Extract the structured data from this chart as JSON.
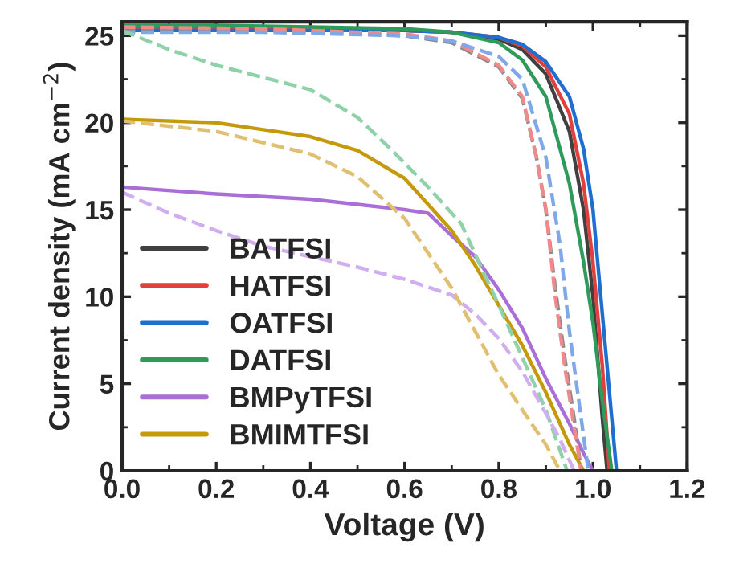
{
  "chart_data": {
    "type": "line",
    "xlabel": "Voltage (V)",
    "ylabel": "Current density (mA cm$^{−2}$)",
    "xlim": [
      0,
      1.2
    ],
    "ylim": [
      0,
      25.8
    ],
    "xticks": [
      {
        "value": 0,
        "label": "0.0"
      },
      0.2,
      0.4,
      0.6,
      0.8,
      {
        "value": 1,
        "label": "1.0"
      },
      1.2
    ],
    "yticks": [
      0,
      5,
      10,
      15,
      20,
      25
    ],
    "grid": false,
    "legend": "bottom left",
    "marker": "none",
    "line_style": "solid",
    "series": [
      {
        "name": "BATFSI",
        "color": "#404040",
        "x": [
          0,
          0.2,
          0.4,
          0.6,
          0.7,
          0.8,
          0.85,
          0.9,
          0.95,
          0.98,
          1.0,
          1.02,
          1.03
        ],
        "values": [
          25.5,
          25.5,
          25.4,
          25.3,
          25.2,
          24.8,
          24.2,
          22.8,
          19.5,
          15,
          10,
          3,
          0
        ]
      },
      {
        "name": "HATFSI",
        "color": "#e0413f",
        "x": [
          0,
          0.2,
          0.4,
          0.6,
          0.7,
          0.8,
          0.85,
          0.9,
          0.95,
          0.98,
          1.0,
          1.02,
          1.035
        ],
        "values": [
          25.5,
          25.5,
          25.4,
          25.3,
          25.2,
          24.9,
          24.4,
          23.2,
          20.5,
          16.5,
          12,
          6,
          0
        ]
      },
      {
        "name": "OATFSI",
        "color": "#1f6fd0",
        "x": [
          0,
          0.2,
          0.4,
          0.6,
          0.7,
          0.8,
          0.85,
          0.9,
          0.95,
          0.98,
          1.0,
          1.02,
          1.04,
          1.05
        ],
        "values": [
          25.3,
          25.3,
          25.3,
          25.3,
          25.2,
          24.9,
          24.5,
          23.5,
          21.5,
          18.5,
          15,
          9,
          3,
          0
        ]
      },
      {
        "name": "DATFSI",
        "color": "#2e9b5b",
        "x": [
          0,
          0.2,
          0.4,
          0.6,
          0.7,
          0.8,
          0.85,
          0.9,
          0.95,
          0.98,
          1.0,
          1.02,
          1.04
        ],
        "values": [
          25.6,
          25.6,
          25.5,
          25.4,
          25.2,
          24.6,
          23.6,
          21.5,
          16.5,
          12,
          8.5,
          4,
          0
        ]
      },
      {
        "name": "BMPyTFSI",
        "color": "#a96fd6",
        "x": [
          0,
          0.2,
          0.4,
          0.5,
          0.6,
          0.65,
          0.7,
          0.75,
          0.8,
          0.85,
          0.9,
          0.95,
          0.98,
          1.0
        ],
        "values": [
          16.3,
          15.9,
          15.6,
          15.3,
          15.0,
          14.8,
          13.5,
          12.3,
          10.4,
          8.2,
          5.3,
          2.7,
          1,
          0
        ]
      },
      {
        "name": "BMIMTFSI",
        "color": "#c49a0c",
        "x": [
          0,
          0.2,
          0.3,
          0.4,
          0.5,
          0.6,
          0.7,
          0.75,
          0.8,
          0.85,
          0.9,
          0.95,
          0.98
        ],
        "values": [
          20.2,
          20,
          19.6,
          19.2,
          18.4,
          16.8,
          13.8,
          11.8,
          9.5,
          7.2,
          4.5,
          1.5,
          0
        ]
      },
      {
        "color": "#8a8a8a",
        "line_style": "dashed",
        "x": [
          0,
          0.3,
          0.6,
          0.7,
          0.8,
          0.85,
          0.88,
          0.9,
          0.92,
          0.94,
          0.96,
          0.975
        ],
        "values": [
          25.4,
          25.3,
          25.0,
          24.6,
          23.2,
          21.4,
          18,
          15,
          10.5,
          6.5,
          3,
          0
        ]
      },
      {
        "color": "#f08a8a",
        "line_style": "dashed",
        "x": [
          0,
          0.3,
          0.6,
          0.7,
          0.8,
          0.85,
          0.88,
          0.9,
          0.92,
          0.94,
          0.96,
          0.975
        ],
        "values": [
          25.5,
          25.4,
          25.1,
          24.7,
          23.3,
          21.5,
          18,
          15,
          10,
          6,
          2.5,
          0
        ]
      },
      {
        "color": "#7fa8e8",
        "line_style": "dashed",
        "x": [
          0,
          0.3,
          0.6,
          0.7,
          0.8,
          0.85,
          0.9,
          0.93,
          0.95,
          0.97,
          0.99
        ],
        "values": [
          25.2,
          25.2,
          25.0,
          24.7,
          23.8,
          22.5,
          18,
          13,
          8,
          4,
          0
        ]
      },
      {
        "color": "#8fd1a8",
        "line_style": "dashed",
        "x": [
          0,
          0.1,
          0.2,
          0.3,
          0.4,
          0.5,
          0.57,
          0.65,
          0.72,
          0.8,
          0.85,
          0.9,
          0.945
        ],
        "values": [
          25.3,
          24.2,
          23.3,
          22.6,
          21.9,
          20.3,
          18.5,
          16.3,
          14.2,
          9.5,
          6.5,
          3.5,
          0
        ]
      },
      {
        "color": "#d0aef0",
        "line_style": "dashed",
        "x": [
          0,
          0.1,
          0.2,
          0.3,
          0.4,
          0.5,
          0.6,
          0.7,
          0.75,
          0.8,
          0.85,
          0.9,
          0.93,
          0.96
        ],
        "values": [
          16,
          14.8,
          13.8,
          12.9,
          12.3,
          11.7,
          11,
          10.1,
          9,
          7.6,
          5.7,
          3.3,
          1.8,
          0
        ]
      },
      {
        "color": "#e0c070",
        "line_style": "dashed",
        "x": [
          0,
          0.2,
          0.4,
          0.5,
          0.6,
          0.7,
          0.75,
          0.8,
          0.85,
          0.9,
          0.93
        ],
        "values": [
          20.1,
          19.5,
          18.2,
          16.9,
          14.5,
          10.5,
          8.0,
          5.5,
          3.5,
          1.5,
          0
        ]
      }
    ]
  }
}
